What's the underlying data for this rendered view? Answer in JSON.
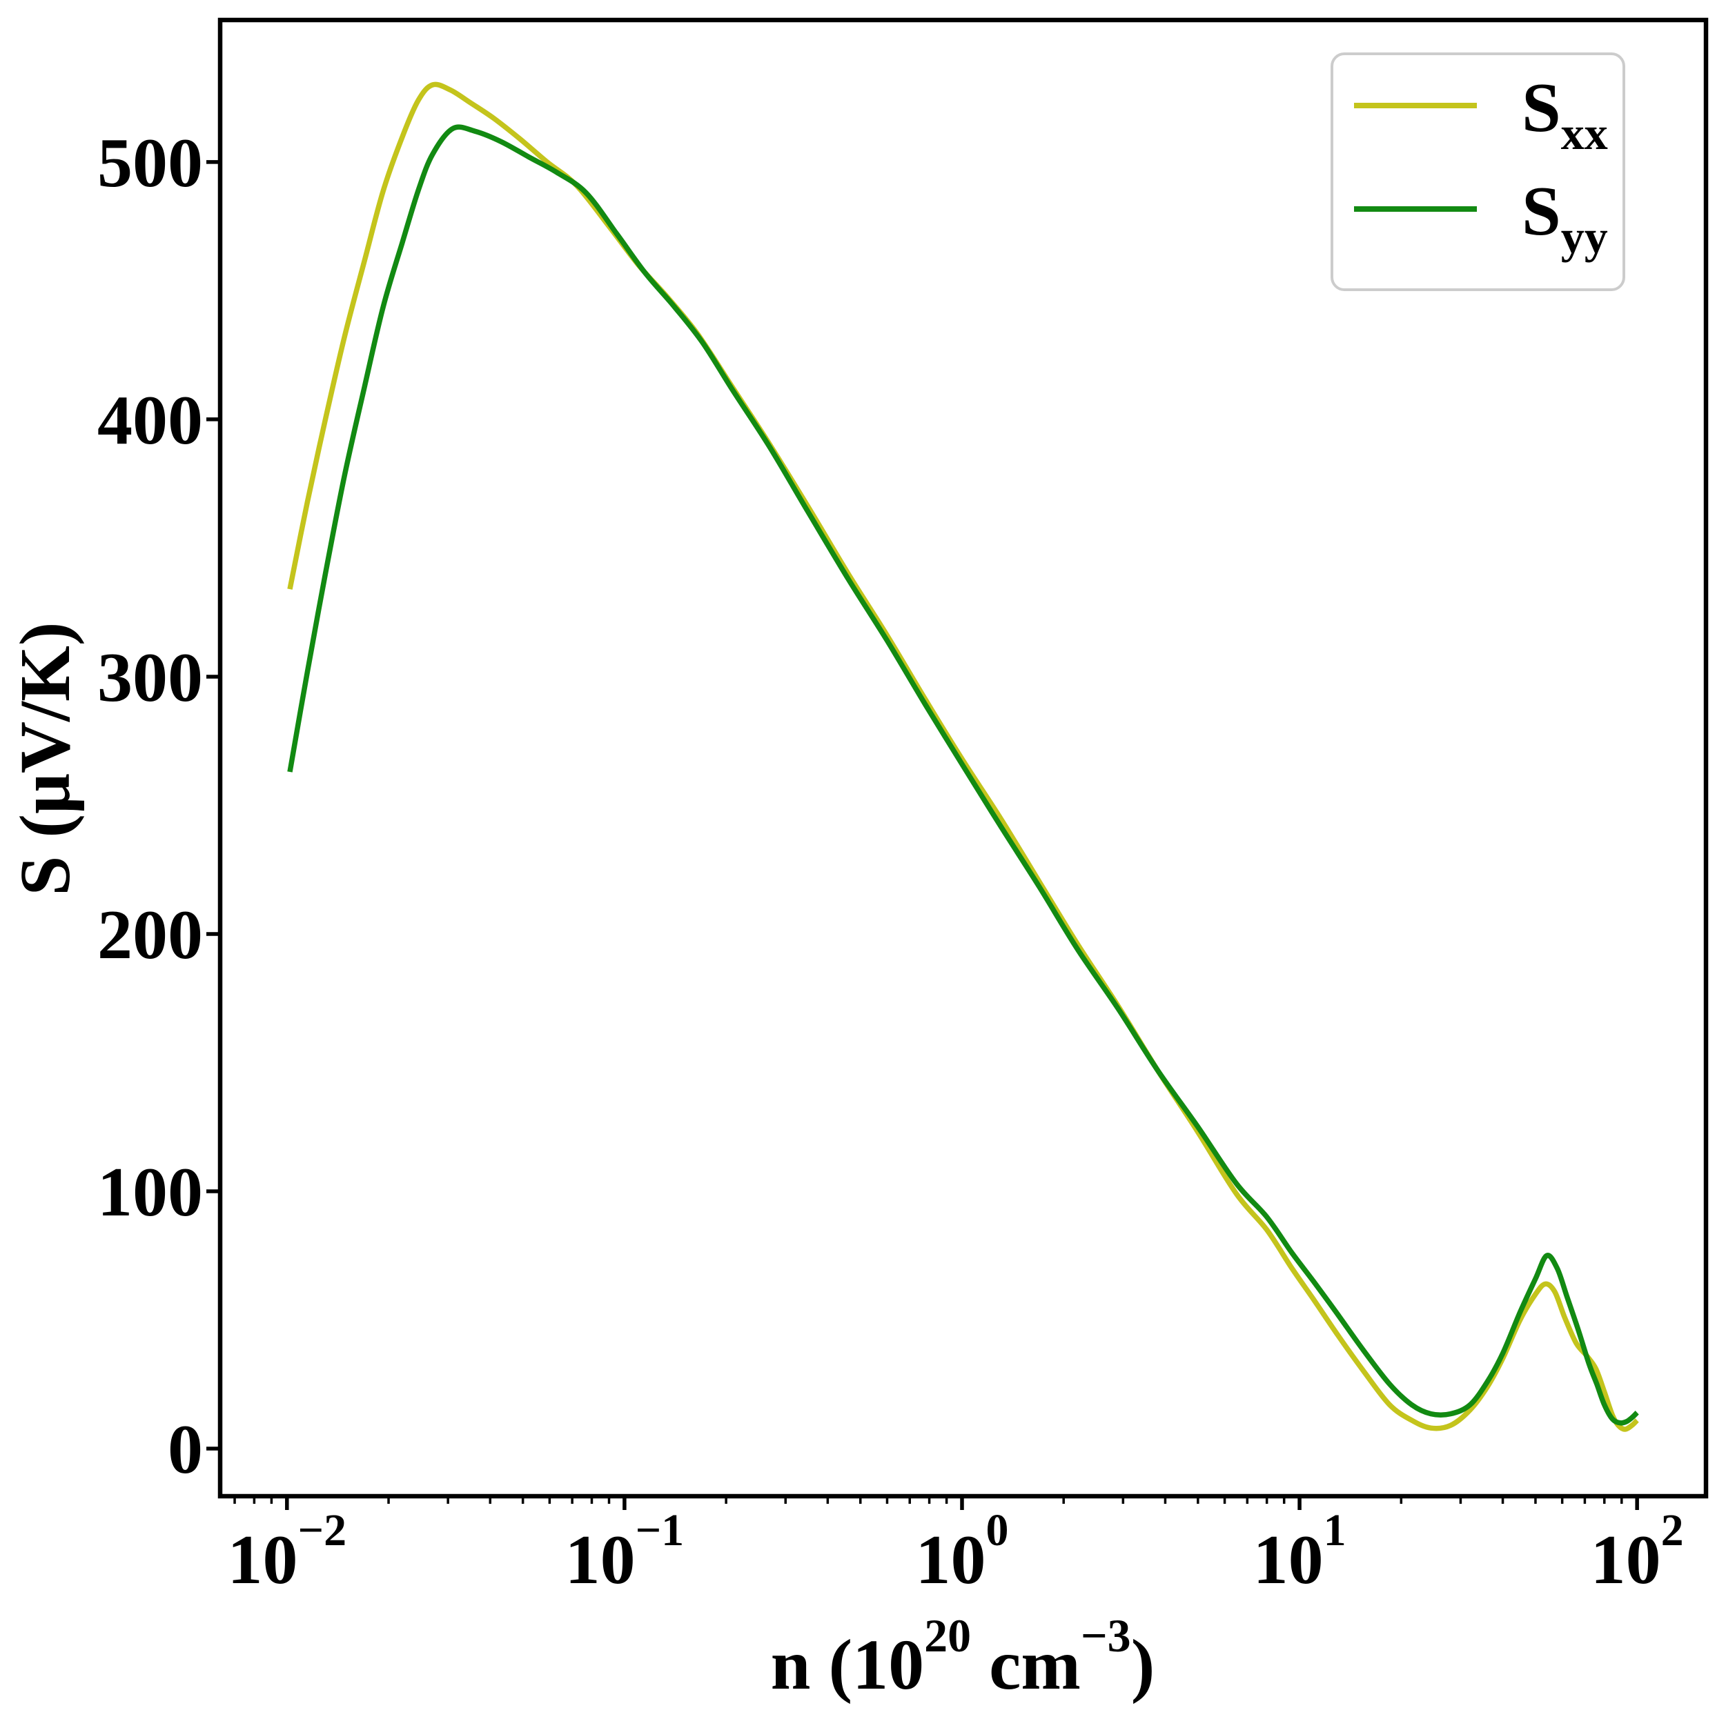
{
  "chart_data": {
    "type": "line",
    "xscale": "log",
    "title": "",
    "ylabel": "S (μV/K)",
    "xlabel_parts": {
      "prefix": "n (10",
      "sup1": "20",
      "mid": " cm",
      "sup2": "−3",
      "suffix": ")"
    },
    "xlim": [
      0.00634,
      160.0
    ],
    "ylim": [
      -18.5,
      555.2
    ],
    "grid": false,
    "frame_color": "#000000",
    "x_major_ticks": [
      {
        "value": 0.01,
        "base": "10",
        "exp": "−2"
      },
      {
        "value": 0.1,
        "base": "10",
        "exp": "−1"
      },
      {
        "value": 1.0,
        "base": "10",
        "exp": "0"
      },
      {
        "value": 10.0,
        "base": "10",
        "exp": "1"
      },
      {
        "value": 100.0,
        "base": "10",
        "exp": "2"
      }
    ],
    "y_major_ticks": [
      {
        "value": 0,
        "label": "0"
      },
      {
        "value": 100,
        "label": "100"
      },
      {
        "value": 200,
        "label": "200"
      },
      {
        "value": 300,
        "label": "300"
      },
      {
        "value": 400,
        "label": "400"
      },
      {
        "value": 500,
        "label": "500"
      }
    ],
    "legend": {
      "position": "upper right",
      "border_color": "#cccccc",
      "background": "#ffffff",
      "entries": [
        {
          "label_main": "S",
          "label_sub": "xx",
          "color": "#c4c41c"
        },
        {
          "label_main": "S",
          "label_sub": "yy",
          "color": "#128a12"
        }
      ]
    },
    "series": [
      {
        "name": "Sxx",
        "color": "#c4c41c",
        "line_width": 7.5,
        "points": [
          [
            0.0102,
            334
          ],
          [
            0.0115,
            368
          ],
          [
            0.013,
            400
          ],
          [
            0.0148,
            432
          ],
          [
            0.017,
            462
          ],
          [
            0.0193,
            489
          ],
          [
            0.022,
            510
          ],
          [
            0.0245,
            524
          ],
          [
            0.027,
            530
          ],
          [
            0.0305,
            528
          ],
          [
            0.035,
            523
          ],
          [
            0.041,
            517
          ],
          [
            0.049,
            509
          ],
          [
            0.059,
            500
          ],
          [
            0.072,
            491
          ],
          [
            0.09,
            475
          ],
          [
            0.11,
            460
          ],
          [
            0.135,
            447
          ],
          [
            0.165,
            433
          ],
          [
            0.21,
            412
          ],
          [
            0.27,
            390
          ],
          [
            0.35,
            366
          ],
          [
            0.46,
            340
          ],
          [
            0.6,
            316
          ],
          [
            0.78,
            291
          ],
          [
            1.0,
            268
          ],
          [
            1.3,
            245
          ],
          [
            1.7,
            220
          ],
          [
            2.2,
            196
          ],
          [
            2.9,
            172
          ],
          [
            3.8,
            147
          ],
          [
            5.0,
            123
          ],
          [
            6.5,
            99
          ],
          [
            8.0,
            85
          ],
          [
            9.5,
            70
          ],
          [
            11,
            58
          ],
          [
            13,
            44
          ],
          [
            15.5,
            30
          ],
          [
            18.5,
            17
          ],
          [
            21.5,
            11
          ],
          [
            24.5,
            8
          ],
          [
            28,
            9
          ],
          [
            32,
            15
          ],
          [
            36,
            24
          ],
          [
            40,
            35
          ],
          [
            45,
            50
          ],
          [
            50,
            60
          ],
          [
            53.5,
            64
          ],
          [
            57,
            61
          ],
          [
            61,
            51
          ],
          [
            66,
            41
          ],
          [
            71,
            36
          ],
          [
            75.5,
            31
          ],
          [
            80,
            22
          ],
          [
            84.5,
            13
          ],
          [
            88,
            9
          ],
          [
            92,
            7.5
          ],
          [
            96.5,
            9
          ],
          [
            100,
            11
          ]
        ]
      },
      {
        "name": "Syy",
        "color": "#128a12",
        "line_width": 7.5,
        "points": [
          [
            0.0102,
            263
          ],
          [
            0.0115,
            302
          ],
          [
            0.013,
            340
          ],
          [
            0.0148,
            378
          ],
          [
            0.017,
            413
          ],
          [
            0.0193,
            444
          ],
          [
            0.022,
            469
          ],
          [
            0.0245,
            489
          ],
          [
            0.027,
            503
          ],
          [
            0.031,
            513
          ],
          [
            0.036,
            512
          ],
          [
            0.043,
            508
          ],
          [
            0.052,
            502
          ],
          [
            0.063,
            496
          ],
          [
            0.077,
            488
          ],
          [
            0.095,
            472
          ],
          [
            0.115,
            457
          ],
          [
            0.14,
            444
          ],
          [
            0.17,
            430
          ],
          [
            0.21,
            411
          ],
          [
            0.27,
            389
          ],
          [
            0.35,
            364
          ],
          [
            0.46,
            338
          ],
          [
            0.6,
            314
          ],
          [
            0.78,
            289
          ],
          [
            1.0,
            266
          ],
          [
            1.3,
            242
          ],
          [
            1.7,
            218
          ],
          [
            2.2,
            194
          ],
          [
            2.9,
            171
          ],
          [
            3.8,
            147
          ],
          [
            5.0,
            125
          ],
          [
            6.5,
            103
          ],
          [
            8.0,
            90
          ],
          [
            9.5,
            76
          ],
          [
            11,
            65
          ],
          [
            13,
            52
          ],
          [
            15.5,
            38
          ],
          [
            18.5,
            25
          ],
          [
            21.5,
            17
          ],
          [
            24.5,
            13.5
          ],
          [
            28,
            13.5
          ],
          [
            32,
            17
          ],
          [
            36,
            26
          ],
          [
            40,
            37
          ],
          [
            45,
            53
          ],
          [
            50,
            66
          ],
          [
            54,
            75
          ],
          [
            58,
            70
          ],
          [
            62,
            59
          ],
          [
            67,
            46
          ],
          [
            72,
            33
          ],
          [
            76,
            25
          ],
          [
            80,
            17
          ],
          [
            84.5,
            11.5
          ],
          [
            89,
            10
          ],
          [
            93,
            10.5
          ],
          [
            96.5,
            12
          ],
          [
            100,
            14
          ]
        ]
      }
    ]
  }
}
